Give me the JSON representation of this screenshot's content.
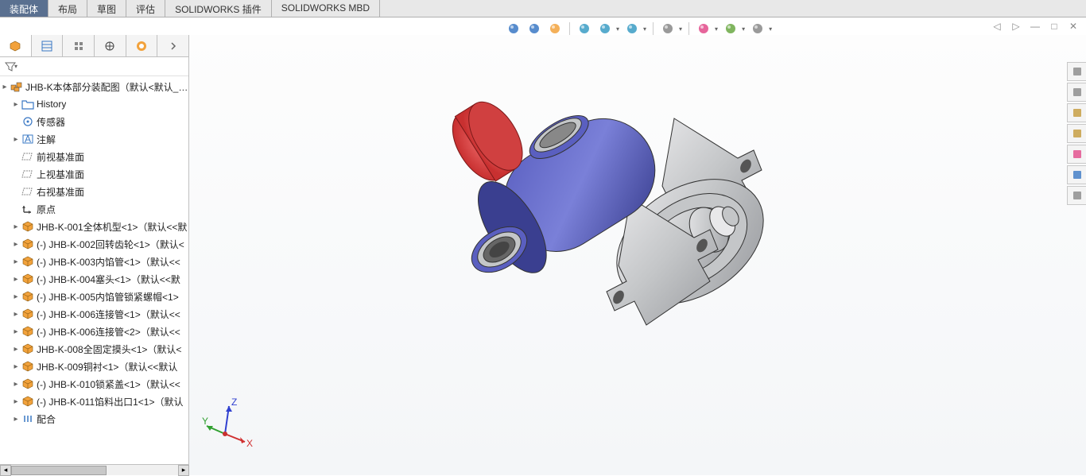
{
  "tabs": {
    "items": [
      "装配体",
      "布局",
      "草图",
      "评估",
      "SOLIDWORKS 插件",
      "SOLIDWORKS MBD"
    ],
    "active_index": 0
  },
  "view_toolbar": {
    "icons": [
      {
        "name": "zoom-to-fit-icon",
        "color": "#3a78c4"
      },
      {
        "name": "zoom-area-icon",
        "color": "#3a78c4"
      },
      {
        "name": "previous-view-icon",
        "color": "#f2a23c"
      },
      {
        "name": "section-view-icon",
        "color": "#3a9cc4"
      },
      {
        "name": "view-orientation-icon",
        "color": "#3a9cc4",
        "dropdown": true
      },
      {
        "name": "display-style-icon",
        "color": "#3a9cc4",
        "dropdown": true
      },
      {
        "name": "hide-show-icon",
        "color": "#888888",
        "dropdown": true
      },
      {
        "name": "appearance-icon",
        "color": "#e24a8a",
        "dropdown": true
      },
      {
        "name": "scene-icon",
        "color": "#6aa843",
        "dropdown": true
      },
      {
        "name": "view-settings-icon",
        "color": "#888888",
        "dropdown": true
      }
    ]
  },
  "window_controls": {
    "items": [
      {
        "name": "prev-doc-icon",
        "glyph": "◁"
      },
      {
        "name": "next-doc-icon",
        "glyph": "▷"
      },
      {
        "name": "minimize-icon",
        "glyph": "—"
      },
      {
        "name": "maximize-icon",
        "glyph": "□"
      },
      {
        "name": "close-icon",
        "glyph": "✕"
      }
    ]
  },
  "panel_tabs": {
    "icons": [
      "feature-tree-icon",
      "property-mgr-icon",
      "config-mgr-icon",
      "dimxpert-icon",
      "display-mgr-icon",
      "overflow-icon"
    ],
    "active_index": 0
  },
  "filter": {
    "placeholder": ""
  },
  "tree": {
    "root": {
      "label": "JHB-K本体部分装配图（默认<默认_显示",
      "icon": "assembly-icon",
      "icon_color": "#f2a23c"
    },
    "items": [
      {
        "expandable": true,
        "indent": 1,
        "icon": "folder-icon",
        "icon_color": "#3a78c4",
        "label": "History"
      },
      {
        "expandable": false,
        "indent": 1,
        "icon": "sensor-icon",
        "icon_color": "#3a78c4",
        "label": "传感器"
      },
      {
        "expandable": true,
        "indent": 1,
        "icon": "annotations-icon",
        "icon_color": "#3a78c4",
        "label": "注解"
      },
      {
        "expandable": false,
        "indent": 1,
        "icon": "plane-icon",
        "icon_color": "#888888",
        "label": "前视基准面"
      },
      {
        "expandable": false,
        "indent": 1,
        "icon": "plane-icon",
        "icon_color": "#888888",
        "label": "上视基准面"
      },
      {
        "expandable": false,
        "indent": 1,
        "icon": "plane-icon",
        "icon_color": "#888888",
        "label": "右视基准面"
      },
      {
        "expandable": false,
        "indent": 1,
        "icon": "origin-icon",
        "icon_color": "#444444",
        "label": "原点"
      },
      {
        "expandable": true,
        "indent": 1,
        "icon": "part-icon",
        "icon_color": "#f2a23c",
        "label": "JHB-K-001全体机型<1>（默认<<默"
      },
      {
        "expandable": true,
        "indent": 1,
        "icon": "part-icon",
        "icon_color": "#f2a23c",
        "label": "(-) JHB-K-002回转齿轮<1>（默认<"
      },
      {
        "expandable": true,
        "indent": 1,
        "icon": "part-icon",
        "icon_color": "#f2a23c",
        "label": "(-) JHB-K-003内馅管<1>（默认<<"
      },
      {
        "expandable": true,
        "indent": 1,
        "icon": "part-icon",
        "icon_color": "#f2a23c",
        "label": "(-) JHB-K-004塞头<1>（默认<<默"
      },
      {
        "expandable": true,
        "indent": 1,
        "icon": "part-icon",
        "icon_color": "#f2a23c",
        "label": "(-) JHB-K-005内馅管锁紧螺帽<1>"
      },
      {
        "expandable": true,
        "indent": 1,
        "icon": "part-icon",
        "icon_color": "#f2a23c",
        "label": "(-) JHB-K-006连接管<1>（默认<<"
      },
      {
        "expandable": true,
        "indent": 1,
        "icon": "part-icon",
        "icon_color": "#f2a23c",
        "label": "(-) JHB-K-006连接管<2>（默认<<"
      },
      {
        "expandable": true,
        "indent": 1,
        "icon": "part-icon",
        "icon_color": "#f2a23c",
        "label": "JHB-K-008全固定摸头<1>（默认<"
      },
      {
        "expandable": true,
        "indent": 1,
        "icon": "part-icon",
        "icon_color": "#f2a23c",
        "label": "JHB-K-009铜衬<1>（默认<<默认"
      },
      {
        "expandable": true,
        "indent": 1,
        "icon": "part-icon",
        "icon_color": "#f2a23c",
        "label": "(-) JHB-K-010锁紧盖<1>（默认<<"
      },
      {
        "expandable": true,
        "indent": 1,
        "icon": "part-icon",
        "icon_color": "#f2a23c",
        "label": "(-) JHB-K-011馅料出口1<1>（默认"
      },
      {
        "expandable": true,
        "indent": 1,
        "icon": "mates-icon",
        "icon_color": "#3a78c4",
        "label": "配合"
      }
    ]
  },
  "task_pane": {
    "icons": [
      {
        "name": "home-icon",
        "color": "#888888"
      },
      {
        "name": "resources-icon",
        "color": "#888888"
      },
      {
        "name": "design-lib-icon",
        "color": "#c49a3a"
      },
      {
        "name": "file-explorer-icon",
        "color": "#c49a3a"
      },
      {
        "name": "view-palette-icon",
        "color": "#e24a8a"
      },
      {
        "name": "appearances-icon",
        "color": "#3a78c4"
      },
      {
        "name": "custom-props-icon",
        "color": "#888888"
      }
    ]
  },
  "triad": {
    "x_label": "X",
    "y_label": "Y",
    "z_label": "Z",
    "x_color": "#d03030",
    "y_color": "#30a030",
    "z_color": "#3040d0"
  },
  "model": {
    "body_color": "#5a5fc0",
    "body_shadow": "#3a3f90",
    "cap_color": "#c83030",
    "metal_light": "#e8e8ea",
    "metal_mid": "#c4c6c8",
    "metal_dark": "#9a9ca0",
    "outline": "#333333"
  }
}
